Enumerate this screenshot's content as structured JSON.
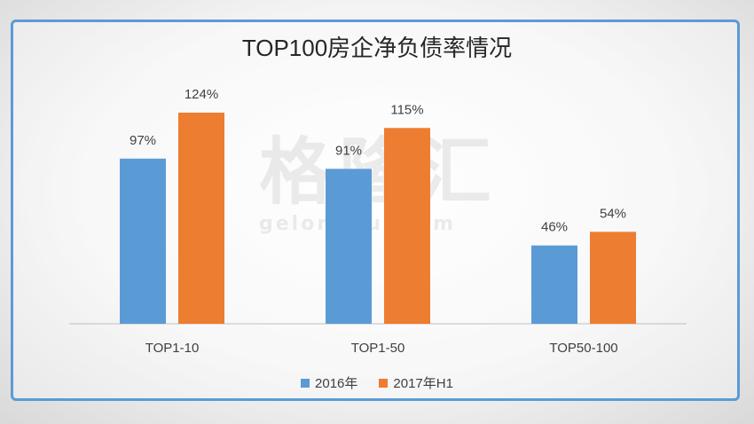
{
  "chart_data": {
    "type": "bar",
    "title": "TOP100房企净负债率情况",
    "categories": [
      "TOP1-10",
      "TOP1-50",
      "TOP50-100"
    ],
    "series": [
      {
        "name": "2016年",
        "values": [
          97,
          91,
          46
        ],
        "labels": [
          "97%",
          "91%",
          "46%"
        ],
        "color": "#5b9bd5"
      },
      {
        "name": "2017年H1",
        "values": [
          124,
          115,
          54
        ],
        "labels": [
          "124%",
          "115%",
          "54%"
        ],
        "color": "#ed7d31"
      }
    ],
    "ylim": [
      0,
      150
    ],
    "legend": "bottom",
    "grid": false
  },
  "watermark": {
    "text_cn": "格隆汇",
    "text_en": "gelonghui.com"
  }
}
